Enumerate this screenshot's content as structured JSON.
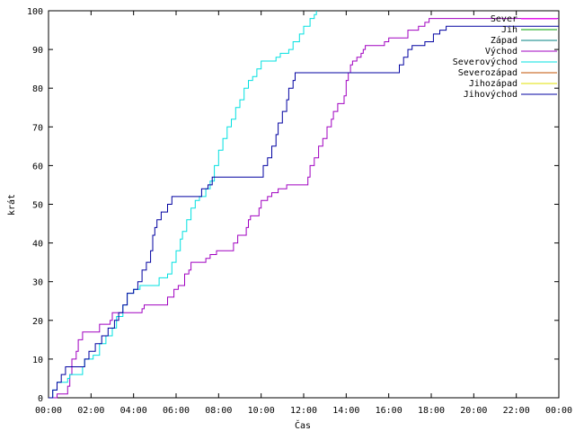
{
  "chart_data": {
    "type": "line",
    "xlabel": "Čas",
    "ylabel": "krát",
    "xlim": [
      0,
      24
    ],
    "ylim": [
      0,
      100
    ],
    "x_ticks": [
      {
        "v": 0,
        "label": "00:00"
      },
      {
        "v": 2,
        "label": "02:00"
      },
      {
        "v": 4,
        "label": "04:00"
      },
      {
        "v": 6,
        "label": "06:00"
      },
      {
        "v": 8,
        "label": "08:00"
      },
      {
        "v": 10,
        "label": "10:00"
      },
      {
        "v": 12,
        "label": "12:00"
      },
      {
        "v": 14,
        "label": "14:00"
      },
      {
        "v": 16,
        "label": "16:00"
      },
      {
        "v": 18,
        "label": "18:00"
      },
      {
        "v": 20,
        "label": "20:00"
      },
      {
        "v": 22,
        "label": "22:00"
      },
      {
        "v": 24,
        "label": "00:00"
      }
    ],
    "y_ticks": [
      {
        "v": 0,
        "label": "0"
      },
      {
        "v": 10,
        "label": "10"
      },
      {
        "v": 20,
        "label": "20"
      },
      {
        "v": 30,
        "label": "30"
      },
      {
        "v": 40,
        "label": "40"
      },
      {
        "v": 50,
        "label": "50"
      },
      {
        "v": 60,
        "label": "60"
      },
      {
        "v": 70,
        "label": "70"
      },
      {
        "v": 80,
        "label": "80"
      },
      {
        "v": 90,
        "label": "90"
      },
      {
        "v": 100,
        "label": "100"
      }
    ],
    "legend_position": "top-right",
    "series": [
      {
        "name": "Sever",
        "color": "#ff00ff",
        "points": []
      },
      {
        "name": "Jih",
        "color": "#00a000",
        "points": []
      },
      {
        "name": "Západ",
        "color": "#008080",
        "points": []
      },
      {
        "name": "Východ",
        "color": "#a000c0",
        "points": [
          [
            0.2,
            0
          ],
          [
            0.4,
            1
          ],
          [
            0.8,
            1
          ],
          [
            0.9,
            3
          ],
          [
            1.0,
            6
          ],
          [
            1.1,
            10
          ],
          [
            1.3,
            12
          ],
          [
            1.4,
            15
          ],
          [
            1.6,
            17
          ],
          [
            2.3,
            17
          ],
          [
            2.4,
            19
          ],
          [
            2.9,
            20
          ],
          [
            3.0,
            22
          ],
          [
            4.3,
            22
          ],
          [
            4.4,
            23
          ],
          [
            4.5,
            24
          ],
          [
            5.4,
            24
          ],
          [
            5.6,
            26
          ],
          [
            5.9,
            28
          ],
          [
            6.1,
            29
          ],
          [
            6.3,
            29
          ],
          [
            6.4,
            32
          ],
          [
            6.6,
            33
          ],
          [
            6.7,
            35
          ],
          [
            7.2,
            35
          ],
          [
            7.4,
            36
          ],
          [
            7.6,
            37
          ],
          [
            7.9,
            38
          ],
          [
            8.6,
            38
          ],
          [
            8.7,
            40
          ],
          [
            8.9,
            42
          ],
          [
            9.0,
            42
          ],
          [
            9.3,
            44
          ],
          [
            9.4,
            46
          ],
          [
            9.5,
            47
          ],
          [
            9.9,
            49
          ],
          [
            10.0,
            51
          ],
          [
            10.3,
            52
          ],
          [
            10.5,
            53
          ],
          [
            10.8,
            54
          ],
          [
            11.2,
            55
          ],
          [
            12.0,
            55
          ],
          [
            12.2,
            57
          ],
          [
            12.3,
            60
          ],
          [
            12.5,
            62
          ],
          [
            12.7,
            65
          ],
          [
            12.9,
            67
          ],
          [
            13.1,
            70
          ],
          [
            13.3,
            72
          ],
          [
            13.4,
            74
          ],
          [
            13.6,
            76
          ],
          [
            13.8,
            76
          ],
          [
            13.9,
            78
          ],
          [
            14.0,
            82
          ],
          [
            14.1,
            84
          ],
          [
            14.2,
            86
          ],
          [
            14.3,
            87
          ],
          [
            14.5,
            88
          ],
          [
            14.7,
            89
          ],
          [
            14.8,
            90
          ],
          [
            14.9,
            91
          ],
          [
            15.6,
            91
          ],
          [
            15.8,
            92
          ],
          [
            16.0,
            93
          ],
          [
            16.8,
            93
          ],
          [
            16.9,
            95
          ],
          [
            17.4,
            96
          ],
          [
            17.7,
            97
          ],
          [
            17.9,
            98
          ],
          [
            24,
            98
          ]
        ]
      },
      {
        "name": "Severovýchod",
        "color": "#00e0e0",
        "points": [
          [
            0.0,
            0
          ],
          [
            0.2,
            2
          ],
          [
            0.4,
            4
          ],
          [
            0.7,
            4
          ],
          [
            0.9,
            5
          ],
          [
            1.0,
            6
          ],
          [
            1.4,
            6
          ],
          [
            1.6,
            8
          ],
          [
            1.7,
            10
          ],
          [
            2.1,
            11
          ],
          [
            2.4,
            14
          ],
          [
            2.7,
            16
          ],
          [
            3.0,
            18
          ],
          [
            3.2,
            21
          ],
          [
            3.5,
            24
          ],
          [
            3.7,
            27
          ],
          [
            4.0,
            28
          ],
          [
            4.3,
            29
          ],
          [
            5.0,
            29
          ],
          [
            5.2,
            31
          ],
          [
            5.6,
            32
          ],
          [
            5.8,
            35
          ],
          [
            6.0,
            38
          ],
          [
            6.2,
            41
          ],
          [
            6.3,
            43
          ],
          [
            6.5,
            46
          ],
          [
            6.7,
            49
          ],
          [
            6.9,
            51
          ],
          [
            7.1,
            52
          ],
          [
            7.4,
            54
          ],
          [
            7.6,
            56
          ],
          [
            7.8,
            60
          ],
          [
            8.0,
            64
          ],
          [
            8.2,
            67
          ],
          [
            8.4,
            70
          ],
          [
            8.6,
            72
          ],
          [
            8.8,
            75
          ],
          [
            9.0,
            77
          ],
          [
            9.2,
            80
          ],
          [
            9.4,
            82
          ],
          [
            9.6,
            83
          ],
          [
            9.8,
            85
          ],
          [
            10.0,
            87
          ],
          [
            10.5,
            87
          ],
          [
            10.7,
            88
          ],
          [
            10.9,
            89
          ],
          [
            11.3,
            90
          ],
          [
            11.5,
            92
          ],
          [
            11.8,
            94
          ],
          [
            12.0,
            96
          ],
          [
            12.3,
            98
          ],
          [
            12.5,
            99
          ],
          [
            12.6,
            100
          ]
        ]
      },
      {
        "name": "Severozápad",
        "color": "#c05000",
        "points": []
      },
      {
        "name": "Jihozápad",
        "color": "#e0e000",
        "points": []
      },
      {
        "name": "Jihovýchod",
        "color": "#0000a0",
        "points": [
          [
            0.0,
            0
          ],
          [
            0.2,
            2
          ],
          [
            0.4,
            4
          ],
          [
            0.6,
            6
          ],
          [
            0.8,
            8
          ],
          [
            1.6,
            8
          ],
          [
            1.7,
            10
          ],
          [
            1.9,
            12
          ],
          [
            2.2,
            14
          ],
          [
            2.5,
            16
          ],
          [
            2.8,
            18
          ],
          [
            3.1,
            20
          ],
          [
            3.3,
            22
          ],
          [
            3.5,
            24
          ],
          [
            3.7,
            27
          ],
          [
            4.0,
            28
          ],
          [
            4.2,
            30
          ],
          [
            4.4,
            33
          ],
          [
            4.6,
            35
          ],
          [
            4.8,
            38
          ],
          [
            4.9,
            42
          ],
          [
            5.0,
            44
          ],
          [
            5.1,
            46
          ],
          [
            5.3,
            48
          ],
          [
            5.6,
            50
          ],
          [
            5.8,
            52
          ],
          [
            7.0,
            52
          ],
          [
            7.2,
            54
          ],
          [
            7.5,
            55
          ],
          [
            7.7,
            57
          ],
          [
            10.0,
            57
          ],
          [
            10.1,
            60
          ],
          [
            10.3,
            62
          ],
          [
            10.5,
            65
          ],
          [
            10.7,
            68
          ],
          [
            10.8,
            71
          ],
          [
            11.0,
            74
          ],
          [
            11.2,
            77
          ],
          [
            11.3,
            80
          ],
          [
            11.5,
            82
          ],
          [
            11.6,
            84
          ],
          [
            16.3,
            84
          ],
          [
            16.5,
            86
          ],
          [
            16.7,
            88
          ],
          [
            16.9,
            90
          ],
          [
            17.1,
            91
          ],
          [
            17.7,
            92
          ],
          [
            18.1,
            94
          ],
          [
            18.4,
            95
          ],
          [
            18.7,
            96
          ],
          [
            24,
            96
          ]
        ]
      }
    ]
  }
}
